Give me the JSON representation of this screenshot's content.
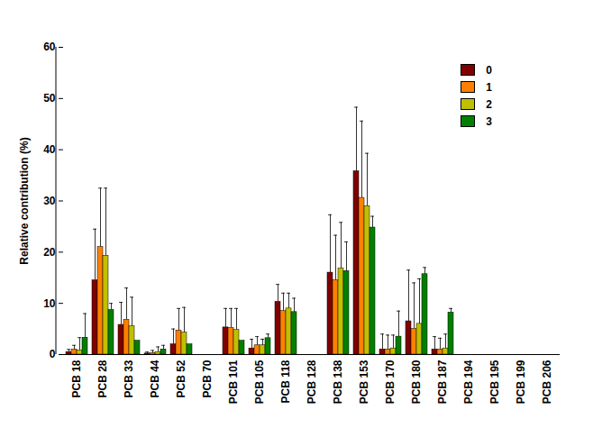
{
  "chart_data": {
    "type": "bar",
    "y_label": "Relative contribution (%)",
    "categories": [
      "PCB 18",
      "PCB 28",
      "PCB 33",
      "PCB 44",
      "PCB 52",
      "PCB 70",
      "PCB 101",
      "PCB 105",
      "PCB 118",
      "PCB 128",
      "PCB 138",
      "PCB 153",
      "PCB 170",
      "PCB 180",
      "PCB 187",
      "PCB 194",
      "PCB 195",
      "PCB 199",
      "PCB 206"
    ],
    "series": [
      {
        "name": "0",
        "color": "#800000",
        "values": [
          0.5,
          14.5,
          5.8,
          0.2,
          2,
          0,
          5.3,
          1.2,
          10.3,
          0,
          16,
          35.8,
          1,
          6.5,
          1,
          0,
          0,
          0,
          0
        ],
        "errors": [
          0.5,
          10,
          4.4,
          0.3,
          3,
          0,
          3.7,
          1.8,
          3.4,
          0,
          11.3,
          12.5,
          3,
          10,
          2.5,
          0,
          0,
          0,
          0
        ]
      },
      {
        "name": "1",
        "color": "#ff8000",
        "values": [
          1,
          21,
          6.8,
          0.3,
          4.7,
          0,
          5.2,
          1.8,
          8.5,
          0,
          14.5,
          30.6,
          1,
          5,
          1,
          0,
          0,
          0,
          0
        ],
        "errors": [
          0.8,
          11.5,
          6.2,
          0.5,
          4.3,
          0,
          3.8,
          1.7,
          3.5,
          0,
          8.8,
          15,
          2.8,
          9,
          2.2,
          0,
          0,
          0,
          0
        ]
      },
      {
        "name": "2",
        "color": "#c0c000",
        "values": [
          0.8,
          19.3,
          5.5,
          0.5,
          4.3,
          0,
          4.8,
          1.8,
          9,
          0,
          16.8,
          29,
          1.2,
          6,
          1.2,
          0,
          0,
          0,
          0
        ],
        "errors": [
          2.5,
          13.2,
          5.7,
          1,
          4.9,
          0,
          4.2,
          1.2,
          3,
          0,
          9,
          10.3,
          2.6,
          8.8,
          2.8,
          0,
          0,
          0,
          0
        ]
      },
      {
        "name": "3",
        "color": "#008000",
        "values": [
          3.3,
          8.7,
          2.7,
          1,
          2,
          0,
          2.7,
          3.2,
          8.3,
          0,
          16.3,
          24.8,
          3.5,
          15.7,
          8.2,
          0,
          0,
          0,
          0
        ],
        "errors": [
          4.7,
          1.3,
          0,
          0.8,
          0,
          0,
          0,
          0.8,
          2.7,
          0,
          5.7,
          2.2,
          5,
          1.3,
          0.8,
          0,
          0,
          0,
          0
        ]
      }
    ],
    "ylim": [
      0,
      60
    ],
    "yticks": [
      0,
      10,
      20,
      30,
      40,
      50,
      60
    ],
    "legend": "upper right"
  }
}
